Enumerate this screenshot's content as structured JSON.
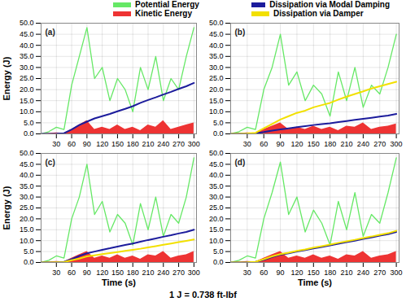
{
  "chart_data": [
    {
      "type": "line",
      "title": "(a)",
      "ylabel": "Energy (J)",
      "x": [
        0,
        15,
        30,
        45,
        60,
        75,
        90,
        105,
        120,
        135,
        150,
        165,
        180,
        195,
        210,
        225,
        240,
        255,
        270,
        285,
        300
      ],
      "xlim": [
        0,
        305
      ],
      "xticks": [
        30,
        60,
        90,
        120,
        150,
        180,
        210,
        240,
        270,
        300
      ],
      "ylim": [
        0,
        50
      ],
      "yticks": [
        {
          "value": 0,
          "label": "0.0"
        },
        {
          "value": 5,
          "label": "5.0"
        },
        {
          "value": 10,
          "label": "10.0"
        },
        {
          "value": 15,
          "label": "15.0"
        },
        {
          "value": 20,
          "label": "20.0"
        },
        {
          "value": 25,
          "label": "25.0"
        },
        {
          "value": 30,
          "label": "30.0"
        },
        {
          "value": 35,
          "label": "35.0"
        },
        {
          "value": 40,
          "label": "40.0"
        },
        {
          "value": 45,
          "label": "45.0"
        },
        {
          "value": 50,
          "label": "50.0"
        }
      ],
      "grid": true,
      "legend": "top",
      "series": [
        {
          "name": "Potential Energy",
          "color": "#66e866",
          "type": "line",
          "values": [
            0,
            1,
            3,
            2,
            22,
            35,
            48,
            25,
            30,
            15,
            25,
            20,
            10,
            30,
            20,
            35,
            15,
            25,
            20,
            35,
            48
          ]
        },
        {
          "name": "Kinetic Energy",
          "color": "#ee3333",
          "type": "area",
          "values": [
            0,
            0.2,
            0.5,
            0.3,
            2,
            4,
            6,
            2,
            3,
            2,
            4,
            2,
            3,
            1.5,
            4,
            3,
            6,
            2,
            3,
            4,
            5
          ]
        },
        {
          "name": "Dissipation via Modal Damping",
          "color": "#1c1c9c",
          "type": "line",
          "values": [
            0,
            0,
            0.1,
            0.3,
            2,
            4,
            5.5,
            7,
            8,
            9,
            10.2,
            11.3,
            12.5,
            14,
            15.3,
            16.5,
            17.8,
            19,
            20.3,
            21.5,
            23
          ]
        }
      ]
    },
    {
      "type": "line",
      "title": "(b)",
      "x": [
        0,
        15,
        30,
        45,
        60,
        75,
        90,
        105,
        120,
        135,
        150,
        165,
        180,
        195,
        210,
        225,
        240,
        255,
        270,
        285,
        300
      ],
      "xlim": [
        0,
        305
      ],
      "xticks": [
        30,
        60,
        90,
        120,
        150,
        180,
        210,
        240,
        270,
        300
      ],
      "ylim": [
        0,
        50
      ],
      "yticks": [
        {
          "value": 0,
          "label": "0.0"
        },
        {
          "value": 5,
          "label": "5.0"
        },
        {
          "value": 10,
          "label": "10.0"
        },
        {
          "value": 15,
          "label": "15.0"
        },
        {
          "value": 20,
          "label": "20.0"
        },
        {
          "value": 25,
          "label": "25.0"
        },
        {
          "value": 30,
          "label": "30.0"
        },
        {
          "value": 35,
          "label": "35.0"
        },
        {
          "value": 40,
          "label": "40.0"
        },
        {
          "value": 45,
          "label": "45.0"
        },
        {
          "value": 50,
          "label": "50.0"
        }
      ],
      "grid": true,
      "legend": "top",
      "series": [
        {
          "name": "Potential Energy",
          "color": "#66e866",
          "type": "line",
          "values": [
            0,
            1,
            3,
            2,
            20,
            30,
            45,
            22,
            28,
            15,
            22,
            18,
            8,
            28,
            15,
            30,
            12,
            22,
            18,
            30,
            45
          ]
        },
        {
          "name": "Kinetic Energy",
          "color": "#ee3333",
          "type": "area",
          "values": [
            0,
            0.2,
            0.5,
            0.3,
            2,
            3.5,
            5,
            2,
            3,
            2,
            3.5,
            2,
            3,
            1.5,
            3.5,
            3,
            5,
            2,
            3,
            3.5,
            4.5
          ]
        },
        {
          "name": "Dissipation via Modal Damping",
          "color": "#1c1c9c",
          "type": "line",
          "values": [
            0,
            0,
            0.1,
            0.2,
            0.8,
            1.5,
            2,
            2.5,
            3,
            3.5,
            4,
            4.4,
            4.8,
            5.3,
            5.8,
            6.3,
            6.8,
            7.3,
            7.8,
            8.3,
            9
          ]
        },
        {
          "name": "Dissipation via Damper",
          "color": "#f2e000",
          "type": "line",
          "values": [
            0,
            0,
            0.2,
            0.5,
            2.5,
            4.5,
            6.5,
            8,
            9.5,
            10.5,
            12,
            13,
            14,
            15.5,
            16.8,
            18,
            19.2,
            20.5,
            21.5,
            22.5,
            23.5
          ]
        }
      ]
    },
    {
      "type": "line",
      "title": "(c)",
      "ylabel": "Energy (J)",
      "xlabel": "Time (s)",
      "x": [
        0,
        15,
        30,
        45,
        60,
        75,
        90,
        105,
        120,
        135,
        150,
        165,
        180,
        195,
        210,
        225,
        240,
        255,
        270,
        285,
        300
      ],
      "xlim": [
        0,
        305
      ],
      "xticks": [
        30,
        60,
        90,
        120,
        150,
        180,
        210,
        240,
        270,
        300
      ],
      "ylim": [
        0,
        50
      ],
      "yticks": [
        {
          "value": 0,
          "label": "0.0"
        },
        {
          "value": 5,
          "label": "5.0"
        },
        {
          "value": 10,
          "label": "10.0"
        },
        {
          "value": 15,
          "label": "15.0"
        },
        {
          "value": 20,
          "label": "20.0"
        },
        {
          "value": 25,
          "label": "25.0"
        },
        {
          "value": 30,
          "label": "30.0"
        },
        {
          "value": 35,
          "label": "35.0"
        },
        {
          "value": 40,
          "label": "40.0"
        },
        {
          "value": 45,
          "label": "45.0"
        },
        {
          "value": 50,
          "label": "50.0"
        }
      ],
      "grid": true,
      "legend": "top",
      "series": [
        {
          "name": "Potential Energy",
          "color": "#66e866",
          "type": "line",
          "values": [
            0,
            1,
            3,
            2,
            20,
            30,
            45,
            22,
            28,
            14,
            22,
            18,
            8,
            27,
            15,
            30,
            12,
            22,
            18,
            30,
            48
          ]
        },
        {
          "name": "Kinetic Energy",
          "color": "#ee3333",
          "type": "area",
          "values": [
            0,
            0.2,
            0.5,
            0.3,
            2,
            3.5,
            5,
            2,
            3,
            2,
            3.5,
            2,
            3,
            1.5,
            3.5,
            3,
            5,
            2,
            3,
            3.5,
            5
          ]
        },
        {
          "name": "Dissipation via Modal Damping",
          "color": "#1c1c9c",
          "type": "line",
          "values": [
            0,
            0,
            0.1,
            0.3,
            1.5,
            3,
            4.2,
            5,
            5.8,
            6.5,
            7.3,
            8,
            8.7,
            9.5,
            10.3,
            11,
            11.8,
            12.5,
            13.3,
            14,
            15
          ]
        },
        {
          "name": "Dissipation via Damper",
          "color": "#f2e000",
          "type": "line",
          "values": [
            0,
            0,
            0.1,
            0.2,
            1,
            1.8,
            2.8,
            3.3,
            3.8,
            4.3,
            4.8,
            5.3,
            5.8,
            6.3,
            6.9,
            7.5,
            8.1,
            8.7,
            9.3,
            9.9,
            10.5
          ]
        }
      ]
    },
    {
      "type": "line",
      "title": "(d)",
      "xlabel": "Time (s)",
      "x": [
        0,
        15,
        30,
        45,
        60,
        75,
        90,
        105,
        120,
        135,
        150,
        165,
        180,
        195,
        210,
        225,
        240,
        255,
        270,
        285,
        300
      ],
      "xlim": [
        0,
        305
      ],
      "xticks": [
        30,
        60,
        90,
        120,
        150,
        180,
        210,
        240,
        270,
        300
      ],
      "ylim": [
        0,
        50
      ],
      "yticks": [
        {
          "value": 0,
          "label": "0.0"
        },
        {
          "value": 5,
          "label": "5.0"
        },
        {
          "value": 10,
          "label": "10.0"
        },
        {
          "value": 15,
          "label": "15.0"
        },
        {
          "value": 20,
          "label": "20.0"
        },
        {
          "value": 25,
          "label": "25.0"
        },
        {
          "value": 30,
          "label": "30.0"
        },
        {
          "value": 35,
          "label": "35.0"
        },
        {
          "value": 40,
          "label": "40.0"
        },
        {
          "value": 45,
          "label": "45.0"
        },
        {
          "value": 50,
          "label": "50.0"
        }
      ],
      "grid": true,
      "legend": "top",
      "series": [
        {
          "name": "Potential Energy",
          "color": "#66e866",
          "type": "line",
          "values": [
            0,
            1,
            3,
            2,
            20,
            32,
            46,
            22,
            30,
            14,
            24,
            18,
            8,
            28,
            15,
            32,
            12,
            22,
            18,
            32,
            48
          ]
        },
        {
          "name": "Kinetic Energy",
          "color": "#ee3333",
          "type": "area",
          "values": [
            0,
            0.2,
            0.5,
            0.3,
            2,
            3.5,
            5,
            2,
            3,
            2,
            3.5,
            2,
            3,
            1.5,
            3.5,
            3,
            5,
            2,
            3,
            3.5,
            5
          ]
        },
        {
          "name": "Dissipation via Modal Damping",
          "color": "#1c1c9c",
          "type": "line",
          "values": [
            0,
            0,
            0.1,
            0.3,
            1.2,
            2.5,
            3.5,
            4.2,
            5,
            5.7,
            6.4,
            7.1,
            7.8,
            8.6,
            9.3,
            10,
            10.8,
            11.5,
            12.3,
            13,
            14
          ]
        },
        {
          "name": "Dissipation via Damper",
          "color": "#f2e000",
          "type": "line",
          "values": [
            0,
            0,
            0.1,
            0.3,
            1.5,
            2.8,
            3.8,
            4.5,
            5.3,
            6,
            6.8,
            7.5,
            8.2,
            9,
            9.7,
            10.4,
            11.2,
            11.9,
            12.7,
            13.4,
            14.5
          ]
        }
      ]
    }
  ],
  "caption": "1 J = 0.738 ft-lbf"
}
